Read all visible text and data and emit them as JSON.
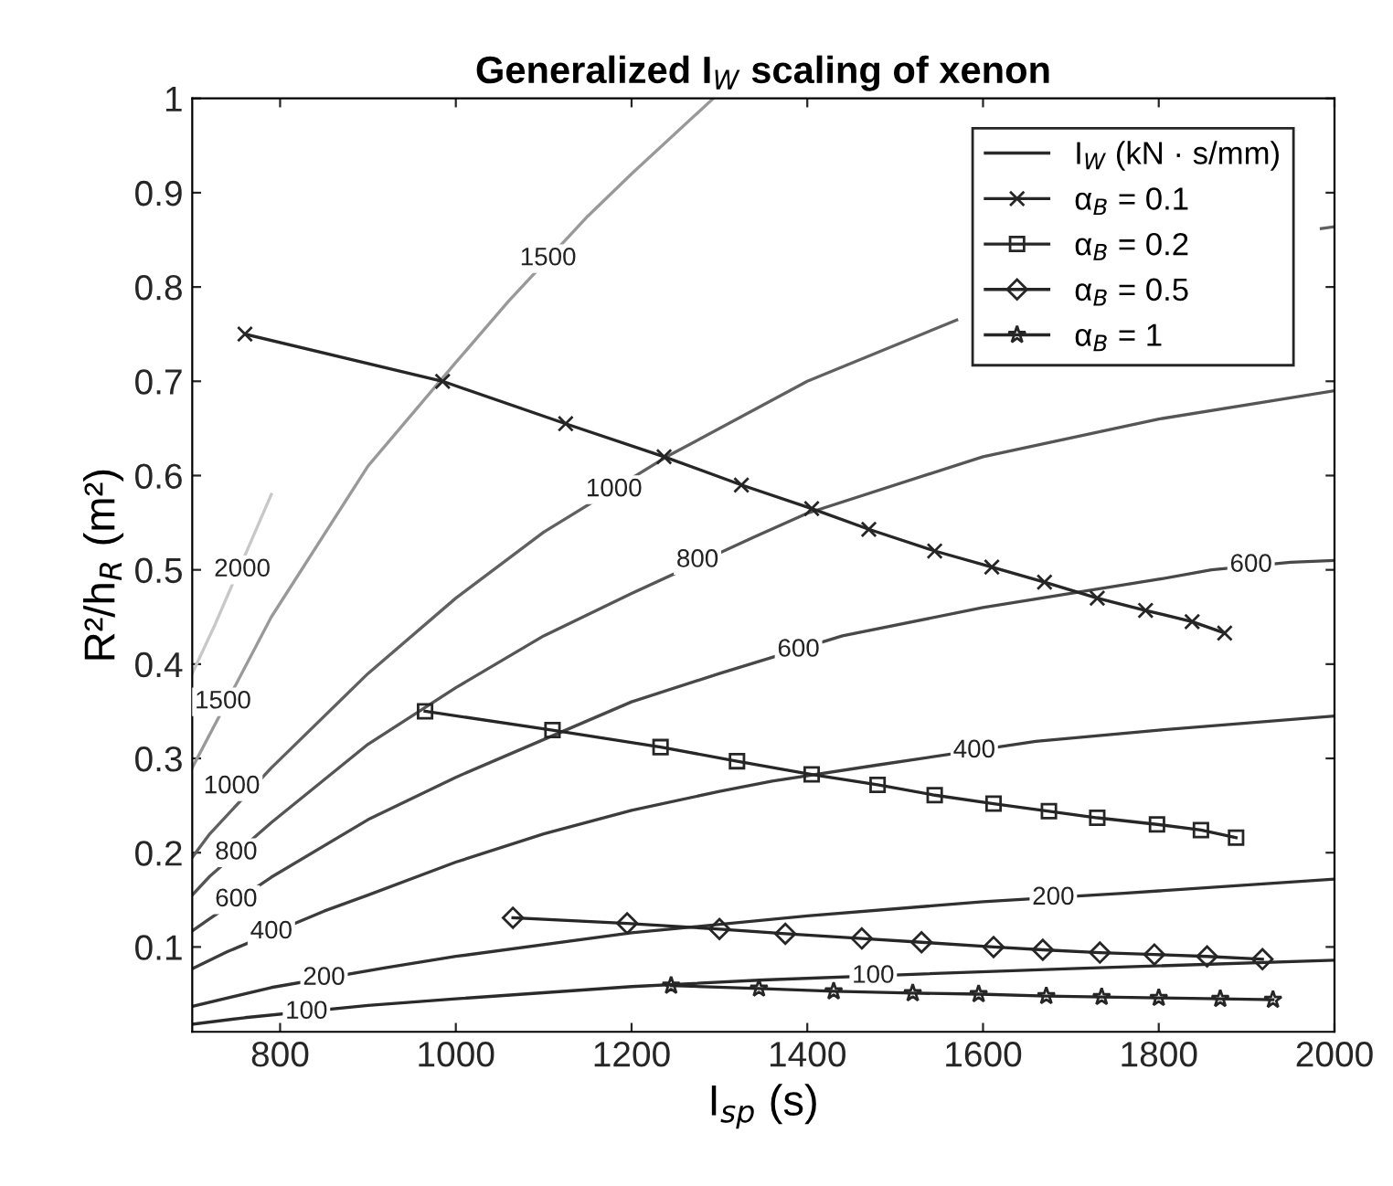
{
  "chart_data": {
    "type": "line",
    "title": "Generalized I$_{W}$ scaling of xenon",
    "xlabel": "I$_{sp}$ (s)",
    "ylabel": "R²/h$_{R}$ (m²)",
    "xlim": [
      700,
      2000
    ],
    "ylim": [
      0.01,
      1
    ],
    "xticks": [
      800,
      1000,
      1200,
      1400,
      1600,
      1800,
      2000
    ],
    "yticks": [
      0.1,
      0.2,
      0.3,
      0.4,
      0.5,
      0.6,
      0.7,
      0.8,
      0.9,
      1
    ],
    "grid": false,
    "legend": "top right",
    "series": [
      {
        "name": "I$_{W}$ (kN · s/mm)",
        "color": "#2a2a2a",
        "marker": "none",
        "x": [
          700,
          760,
          900,
          1000,
          1200,
          1350,
          1520,
          1700,
          2000
        ],
        "values": [
          0.018,
          0.025,
          0.038,
          0.045,
          0.058,
          0.065,
          0.071,
          0.077,
          0.086
        ]
      },
      {
        "color": "#303030",
        "marker": "none",
        "x": [
          700,
          790,
          920,
          1000,
          1200,
          1400,
          1600,
          1760,
          2000
        ],
        "values": [
          0.037,
          0.057,
          0.078,
          0.09,
          0.115,
          0.133,
          0.148,
          0.157,
          0.172
        ]
      },
      {
        "color": "#3c3c3c",
        "marker": "none",
        "x": [
          700,
          740,
          850,
          900,
          1000,
          1100,
          1200,
          1300,
          1360,
          1480,
          1660,
          1800,
          2000
        ],
        "values": [
          0.077,
          0.095,
          0.138,
          0.155,
          0.19,
          0.22,
          0.245,
          0.265,
          0.276,
          0.293,
          0.318,
          0.33,
          0.345
        ]
      },
      {
        "color": "#484848",
        "marker": "none",
        "x": [
          700,
          720,
          790,
          900,
          1000,
          1100,
          1200,
          1300,
          1440,
          1600,
          1800,
          1860,
          1950,
          2000
        ],
        "values": [
          0.117,
          0.13,
          0.174,
          0.235,
          0.28,
          0.32,
          0.36,
          0.39,
          0.43,
          0.46,
          0.49,
          0.5,
          0.508,
          0.51
        ]
      },
      {
        "color": "#555555",
        "marker": "none",
        "x": [
          700,
          720,
          790,
          900,
          1000,
          1100,
          1200,
          1340,
          1400,
          1600,
          1800,
          2000
        ],
        "values": [
          0.155,
          0.175,
          0.232,
          0.315,
          0.375,
          0.43,
          0.475,
          0.535,
          0.56,
          0.62,
          0.66,
          0.69
        ]
      },
      {
        "color": "#606060",
        "marker": "none",
        "x": [
          700,
          720,
          790,
          900,
          1000,
          1100,
          1240,
          1400,
          1570,
          1800,
          1985,
          2000
        ],
        "values": [
          0.195,
          0.22,
          0.29,
          0.39,
          0.47,
          0.54,
          0.62,
          0.7,
          0.765,
          null,
          0.862,
          0.864
        ]
      },
      {
        "color": "#999999",
        "marker": "none",
        "x": [
          700,
          790,
          900,
          1000,
          1060,
          1150,
          1200,
          1293
        ],
        "values": [
          0.29,
          0.45,
          0.61,
          0.72,
          0.785,
          0.875,
          0.92,
          1.0
        ]
      },
      {
        "color": "#c8c8c8",
        "marker": "none",
        "x": [
          700,
          725,
          790
        ],
        "values": [
          0.39,
          0.44,
          0.58
        ]
      },
      {
        "name": "α$_{B}$ = 0.1",
        "color": "#262626",
        "marker": "cross",
        "x": [
          760,
          985,
          1125,
          1237,
          1325,
          1405,
          1470,
          1545,
          1610,
          1670,
          1730,
          1785,
          1838,
          1875
        ],
        "values": [
          0.75,
          0.7,
          0.655,
          0.62,
          0.59,
          0.565,
          0.543,
          0.52,
          0.503,
          0.487,
          0.47,
          0.457,
          0.445,
          0.433
        ]
      },
      {
        "name": "α$_{B}$ = 0.2",
        "color": "#262626",
        "marker": "square",
        "x": [
          965,
          1110,
          1233,
          1320,
          1405,
          1480,
          1545,
          1612,
          1675,
          1730,
          1798,
          1848,
          1888
        ],
        "values": [
          0.35,
          0.33,
          0.312,
          0.297,
          0.283,
          0.272,
          0.261,
          0.252,
          0.244,
          0.237,
          0.23,
          0.224,
          0.216
        ]
      },
      {
        "name": "α$_{B}$ = 0.5",
        "color": "#262626",
        "marker": "diamond",
        "x": [
          1065,
          1195,
          1300,
          1375,
          1462,
          1530,
          1612,
          1668,
          1733,
          1795,
          1855,
          1918
        ],
        "values": [
          0.131,
          0.125,
          0.119,
          0.114,
          0.109,
          0.105,
          0.1,
          0.097,
          0.094,
          0.092,
          0.09,
          0.087
        ]
      },
      {
        "name": "α$_{B}$ = 1",
        "color": "#262626",
        "marker": "star",
        "x": [
          1245,
          1345,
          1430,
          1520,
          1595,
          1672,
          1735,
          1800,
          1870,
          1930
        ],
        "values": [
          0.059,
          0.056,
          0.053,
          0.051,
          0.05,
          0.048,
          0.047,
          0.046,
          0.045,
          0.044
        ]
      }
    ],
    "annotations": [
      {
        "text": "1500",
        "x": 1105,
        "y": 0.83
      },
      {
        "text": "1500",
        "x": 735,
        "y": 0.36
      },
      {
        "text": "2000",
        "x": 757,
        "y": 0.5
      },
      {
        "text": "1000",
        "x": 1180,
        "y": 0.585
      },
      {
        "text": "1000",
        "x": 745,
        "y": 0.27
      },
      {
        "text": "800",
        "x": 1275,
        "y": 0.51
      },
      {
        "text": "800",
        "x": 750,
        "y": 0.2
      },
      {
        "text": "600",
        "x": 1905,
        "y": 0.505
      },
      {
        "text": "600",
        "x": 1390,
        "y": 0.415
      },
      {
        "text": "600",
        "x": 750,
        "y": 0.15
      },
      {
        "text": "400",
        "x": 1590,
        "y": 0.308
      },
      {
        "text": "400",
        "x": 790,
        "y": 0.116
      },
      {
        "text": "200",
        "x": 1680,
        "y": 0.152
      },
      {
        "text": "200",
        "x": 850,
        "y": 0.067
      },
      {
        "text": "100",
        "x": 1475,
        "y": 0.069
      },
      {
        "text": "100",
        "x": 830,
        "y": 0.031
      }
    ]
  }
}
